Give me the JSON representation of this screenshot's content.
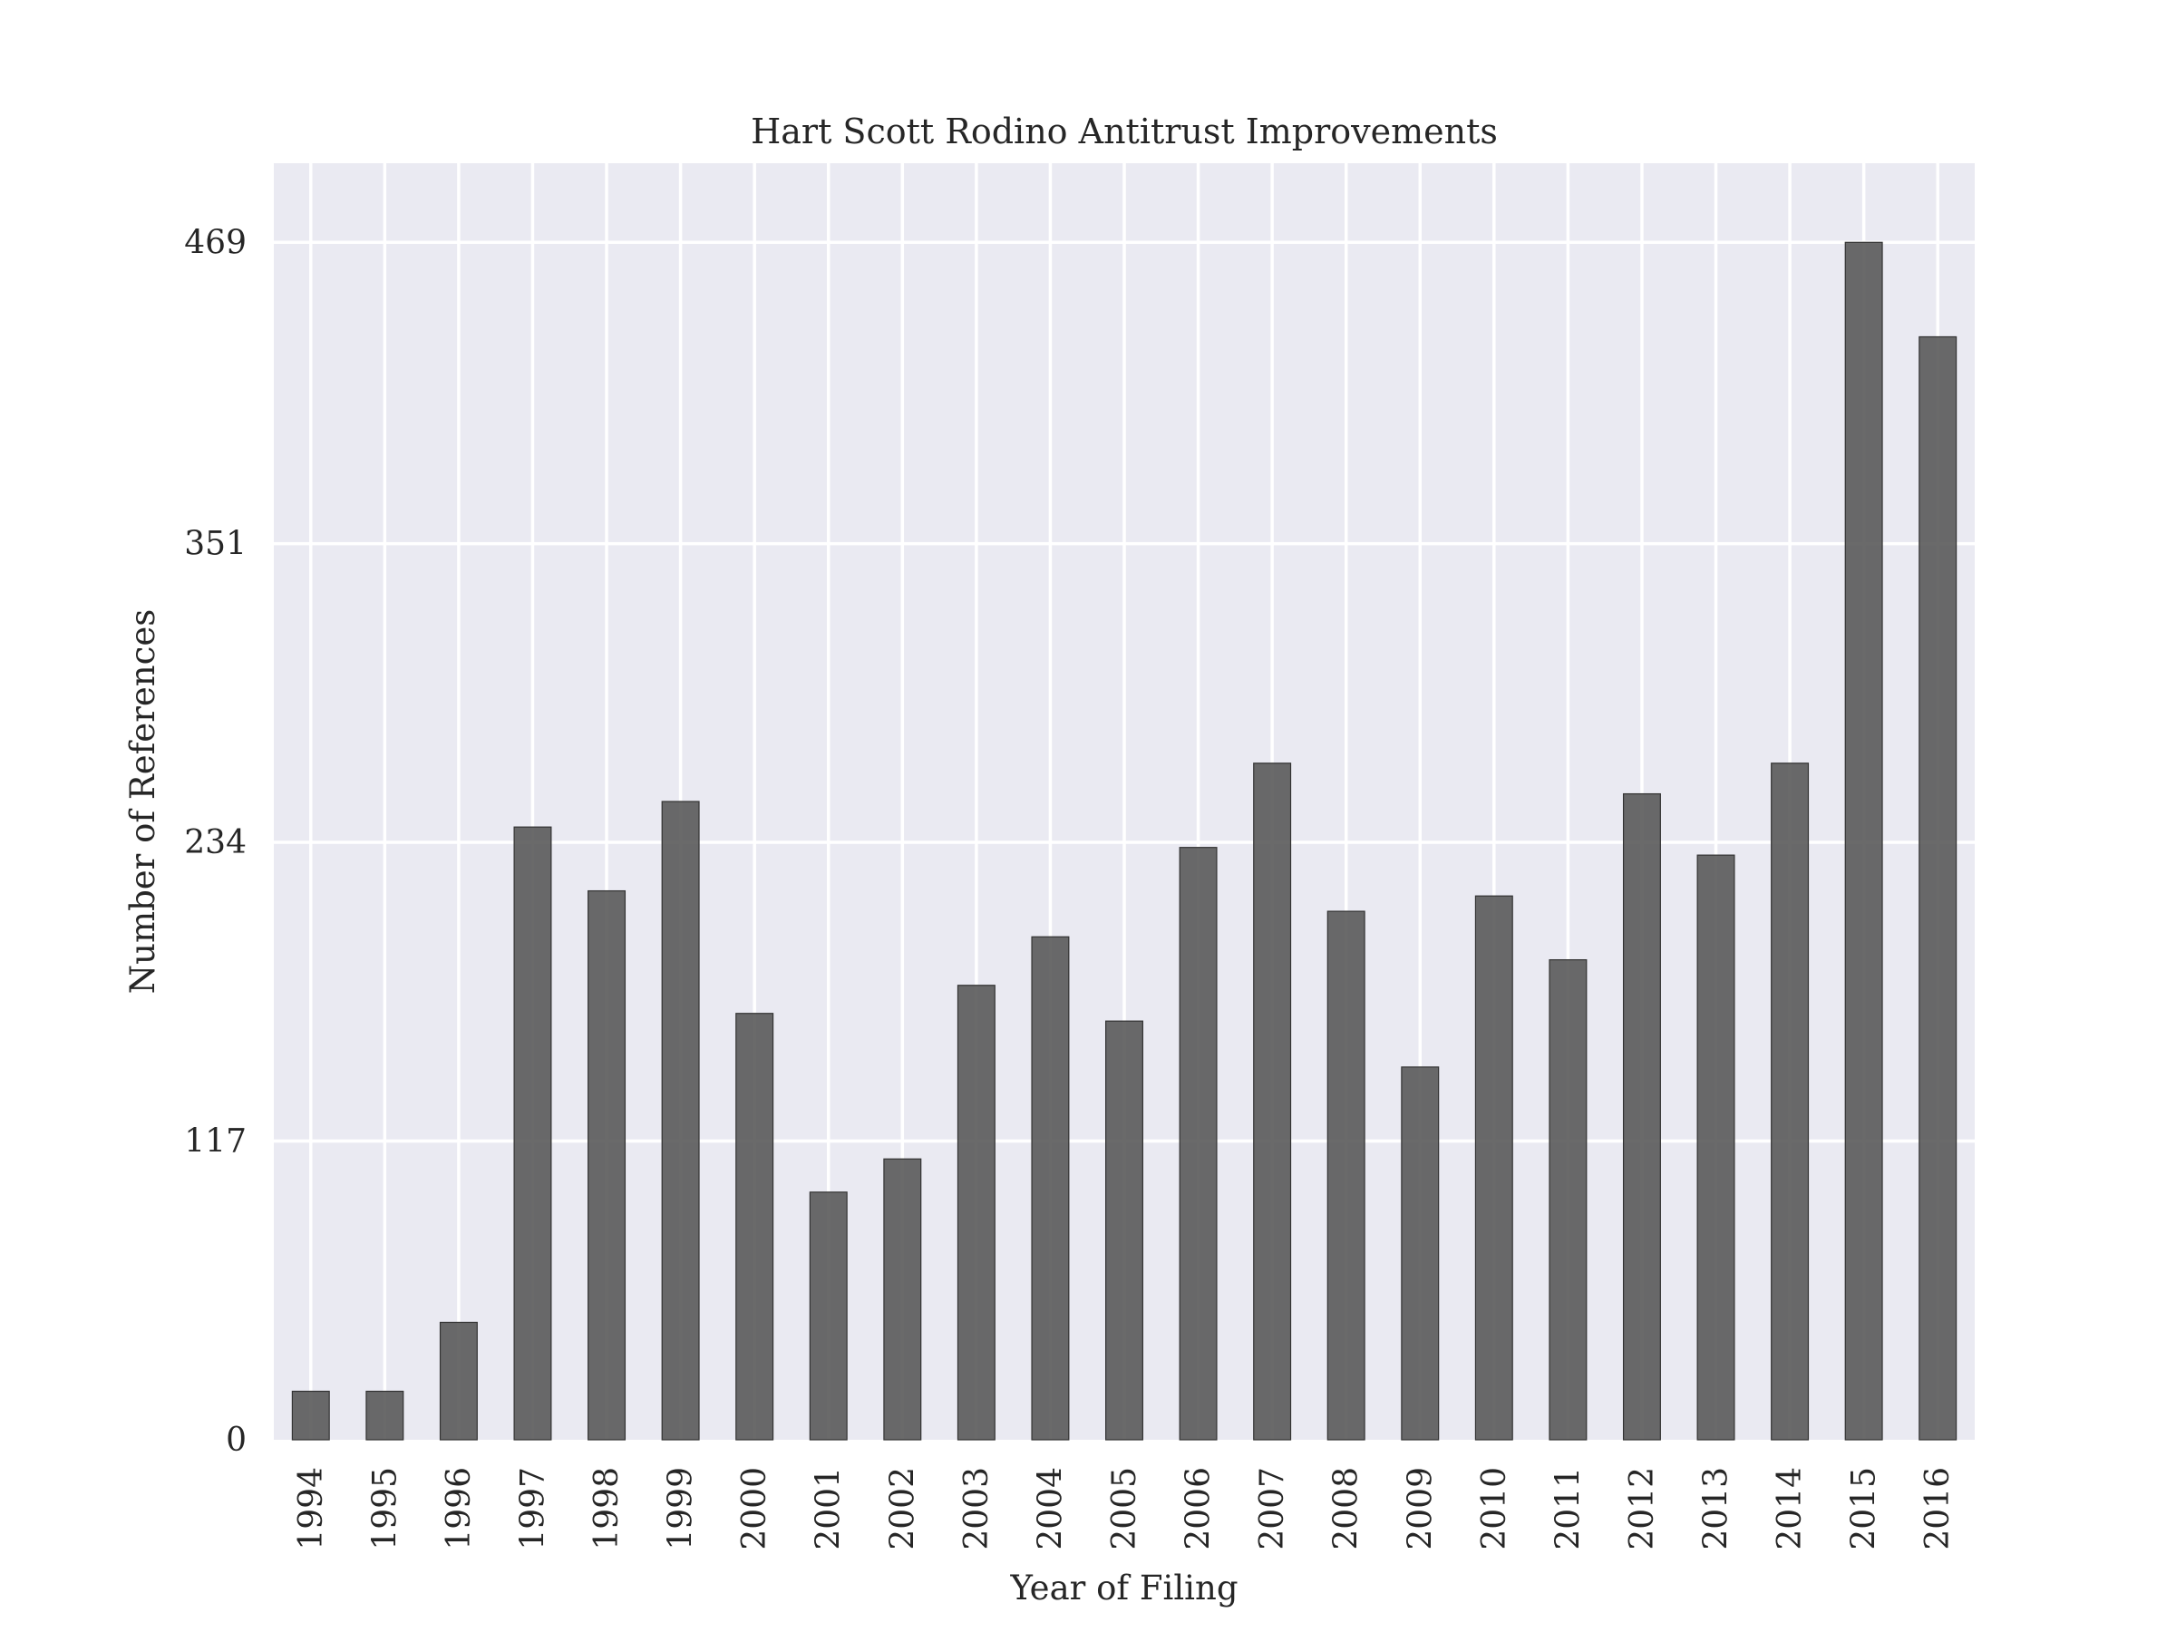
{
  "chart_data": {
    "type": "bar",
    "title": "Hart Scott Rodino Antitrust Improvements",
    "xlabel": "Year of Filing",
    "ylabel": "Number of References",
    "categories": [
      "1994",
      "1995",
      "1996",
      "1997",
      "1998",
      "1999",
      "2000",
      "2001",
      "2002",
      "2003",
      "2004",
      "2005",
      "2006",
      "2007",
      "2008",
      "2009",
      "2010",
      "2011",
      "2012",
      "2013",
      "2014",
      "2015",
      "2016"
    ],
    "values": [
      19,
      19,
      46,
      240,
      215,
      250,
      167,
      97,
      110,
      178,
      197,
      164,
      232,
      265,
      207,
      146,
      213,
      188,
      253,
      229,
      265,
      469,
      432
    ],
    "yticks": [
      0,
      117,
      234,
      351,
      469
    ],
    "ylim": [
      0,
      500
    ],
    "grid": true,
    "colors": {
      "bar": "#555555",
      "plot_background": "#eaeaf2",
      "grid": "#ffffff"
    }
  }
}
